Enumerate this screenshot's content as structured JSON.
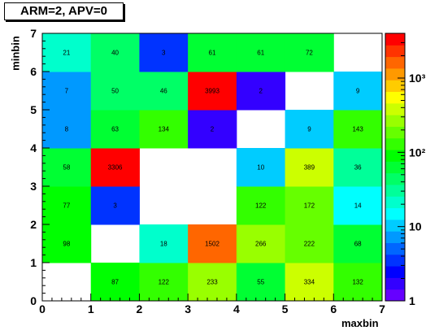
{
  "chart_data": {
    "type": "heatmap",
    "title": "ARM=2, APV=0",
    "xlabel": "maxbin",
    "ylabel": "minbin",
    "xlim": [
      0,
      7
    ],
    "ylim": [
      0,
      7
    ],
    "x_ticks": [
      "0",
      "1",
      "2",
      "3",
      "4",
      "5",
      "6",
      "7"
    ],
    "y_ticks": [
      "0",
      "1",
      "2",
      "3",
      "4",
      "5",
      "6",
      "7"
    ],
    "z_scale": "log",
    "z_range": [
      1,
      4000
    ],
    "colorbar_ticks": [
      "1",
      "10",
      "10²",
      "10³"
    ],
    "cells": [
      {
        "x": 1,
        "y": 0,
        "value": 87
      },
      {
        "x": 2,
        "y": 0,
        "value": 122
      },
      {
        "x": 3,
        "y": 0,
        "value": 233
      },
      {
        "x": 4,
        "y": 0,
        "value": 55
      },
      {
        "x": 5,
        "y": 0,
        "value": 334
      },
      {
        "x": 6,
        "y": 0,
        "value": 132
      },
      {
        "x": 0,
        "y": 1,
        "value": 98
      },
      {
        "x": 2,
        "y": 1,
        "value": 18
      },
      {
        "x": 3,
        "y": 1,
        "value": 1502
      },
      {
        "x": 4,
        "y": 1,
        "value": 266
      },
      {
        "x": 5,
        "y": 1,
        "value": 222
      },
      {
        "x": 6,
        "y": 1,
        "value": 68
      },
      {
        "x": 0,
        "y": 2,
        "value": 77
      },
      {
        "x": 1,
        "y": 2,
        "value": 3
      },
      {
        "x": 4,
        "y": 2,
        "value": 122
      },
      {
        "x": 5,
        "y": 2,
        "value": 172
      },
      {
        "x": 6,
        "y": 2,
        "value": 14
      },
      {
        "x": 0,
        "y": 3,
        "value": 58
      },
      {
        "x": 1,
        "y": 3,
        "value": 3306
      },
      {
        "x": 4,
        "y": 3,
        "value": 10
      },
      {
        "x": 5,
        "y": 3,
        "value": 389
      },
      {
        "x": 6,
        "y": 3,
        "value": 36
      },
      {
        "x": 0,
        "y": 4,
        "value": 8
      },
      {
        "x": 1,
        "y": 4,
        "value": 63
      },
      {
        "x": 2,
        "y": 4,
        "value": 134
      },
      {
        "x": 3,
        "y": 4,
        "value": 2
      },
      {
        "x": 5,
        "y": 4,
        "value": 9
      },
      {
        "x": 6,
        "y": 4,
        "value": 143
      },
      {
        "x": 0,
        "y": 5,
        "value": 7
      },
      {
        "x": 1,
        "y": 5,
        "value": 50
      },
      {
        "x": 2,
        "y": 5,
        "value": 46
      },
      {
        "x": 3,
        "y": 5,
        "value": 3993
      },
      {
        "x": 4,
        "y": 5,
        "value": 2
      },
      {
        "x": 6,
        "y": 5,
        "value": 9
      },
      {
        "x": 0,
        "y": 6,
        "value": 21
      },
      {
        "x": 1,
        "y": 6,
        "value": 40
      },
      {
        "x": 2,
        "y": 6,
        "value": 3
      },
      {
        "x": 3,
        "y": 6,
        "value": 61
      },
      {
        "x": 4,
        "y": 6,
        "value": 61
      },
      {
        "x": 5,
        "y": 6,
        "value": 72
      }
    ]
  }
}
